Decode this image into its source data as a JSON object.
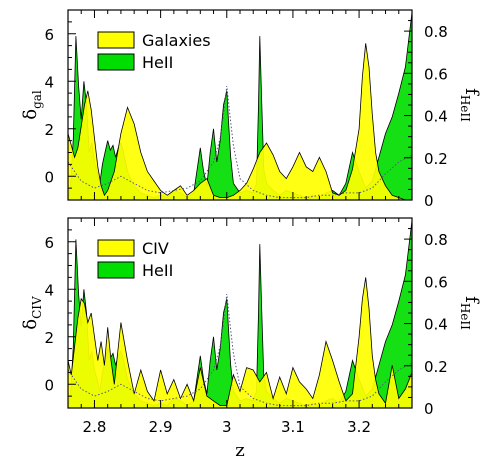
{
  "chart_data": [
    {
      "type": "area",
      "panel": "top",
      "xlabel": "z",
      "ylabel": {
        "symbol": "δ",
        "subscript": "gal"
      },
      "y2label": {
        "symbol": "f",
        "subscript": "HeII"
      },
      "xlim": [
        2.76,
        3.28
      ],
      "ylim": [
        -1.0,
        7.0
      ],
      "y2lim": [
        0.0,
        0.9
      ],
      "xticks": [
        2.8,
        2.9,
        3.0,
        3.1,
        3.2
      ],
      "xticklabels": [
        "2.8",
        "2.9",
        "3",
        "3.1",
        "3.2"
      ],
      "yticks": [
        0,
        2,
        4,
        6
      ],
      "yticklabels": [
        "0",
        "2",
        "4",
        "6"
      ],
      "y2ticks": [
        0.0,
        0.2,
        0.4,
        0.6,
        0.8
      ],
      "y2ticklabels": [
        "0",
        "0.2",
        "0.4",
        "0.6",
        "0.8"
      ],
      "legend": {
        "position": "top-left",
        "entries": [
          "Galaxies",
          "HeII"
        ]
      },
      "series": [
        {
          "name": "HeII",
          "color": "#00dd00",
          "x": [
            2.76,
            2.764,
            2.768,
            2.772,
            2.776,
            2.78,
            2.784,
            2.788,
            2.792,
            2.796,
            2.8,
            2.804,
            2.808,
            2.812,
            2.816,
            2.82,
            2.824,
            2.828,
            2.832,
            2.836,
            2.84,
            2.844,
            2.85,
            2.86,
            2.87,
            2.88,
            2.89,
            2.9,
            2.91,
            2.92,
            2.93,
            2.94,
            2.95,
            2.96,
            2.965,
            2.97,
            2.975,
            2.98,
            2.985,
            2.99,
            2.995,
            3.0,
            3.003,
            3.006,
            3.01,
            3.02,
            3.03,
            3.04,
            3.045,
            3.048,
            3.05,
            3.053,
            3.056,
            3.06,
            3.07,
            3.08,
            3.09,
            3.1,
            3.11,
            3.12,
            3.13,
            3.14,
            3.15,
            3.16,
            3.17,
            3.18,
            3.19,
            3.2,
            3.21,
            3.22,
            3.23,
            3.24,
            3.25,
            3.26,
            3.27,
            3.28
          ],
          "y": [
            -1.0,
            -0.4,
            1.6,
            5.9,
            3.8,
            2.4,
            4.0,
            3.0,
            1.0,
            1.4,
            0.6,
            0.2,
            -0.3,
            0.5,
            1.0,
            1.5,
            1.1,
            1.3,
            0.8,
            1.2,
            1.4,
            1.0,
            0.2,
            -0.4,
            -0.7,
            -0.8,
            -0.9,
            -0.8,
            -0.9,
            -0.6,
            -0.7,
            -0.9,
            -0.7,
            1.2,
            0.2,
            -0.4,
            1.0,
            2.0,
            0.6,
            1.5,
            3.0,
            3.6,
            2.1,
            0.8,
            -0.3,
            -0.7,
            -0.6,
            -0.7,
            -0.3,
            3.0,
            5.9,
            3.0,
            0.3,
            -0.3,
            -0.6,
            -0.8,
            -0.6,
            -0.7,
            -0.8,
            -0.9,
            -0.8,
            -0.9,
            -0.7,
            -0.6,
            -0.8,
            -0.3,
            1.0,
            0.2,
            -0.5,
            -0.2,
            0.8,
            1.8,
            2.5,
            3.5,
            4.6,
            6.9
          ]
        },
        {
          "name": "Galaxies",
          "color": "#ffff00",
          "x": [
            2.76,
            2.765,
            2.77,
            2.775,
            2.78,
            2.785,
            2.79,
            2.795,
            2.8,
            2.805,
            2.81,
            2.815,
            2.82,
            2.83,
            2.84,
            2.85,
            2.86,
            2.87,
            2.88,
            2.89,
            2.9,
            2.91,
            2.92,
            2.93,
            2.94,
            2.95,
            2.96,
            2.97,
            2.98,
            2.99,
            3.0,
            3.01,
            3.02,
            3.03,
            3.04,
            3.05,
            3.06,
            3.07,
            3.08,
            3.09,
            3.1,
            3.11,
            3.12,
            3.13,
            3.14,
            3.15,
            3.16,
            3.17,
            3.18,
            3.19,
            3.2,
            3.205,
            3.21,
            3.215,
            3.22,
            3.225,
            3.23,
            3.24,
            3.25,
            3.26,
            3.27,
            3.28
          ],
          "y": [
            1.8,
            1.3,
            0.8,
            1.2,
            2.1,
            3.0,
            3.6,
            2.8,
            1.6,
            0.4,
            -0.4,
            -0.8,
            -0.6,
            0.2,
            1.8,
            2.9,
            2.2,
            1.0,
            0.2,
            -0.2,
            -0.6,
            -0.8,
            -0.6,
            -0.4,
            -0.8,
            -0.6,
            -0.3,
            -0.1,
            -0.8,
            -0.9,
            -0.9,
            -0.8,
            -0.6,
            -0.3,
            0.3,
            1.0,
            1.4,
            0.9,
            0.2,
            -0.1,
            0.4,
            1.0,
            0.4,
            0.2,
            0.8,
            0.2,
            -0.7,
            -0.8,
            -0.6,
            0.3,
            2.0,
            4.2,
            5.6,
            4.6,
            2.6,
            1.0,
            0.2,
            -0.4,
            -0.8,
            -0.9,
            -1.0,
            -1.0
          ]
        },
        {
          "name": "",
          "style": "dotted",
          "color": "#000000",
          "x": [
            2.76,
            2.78,
            2.8,
            2.82,
            2.84,
            2.86,
            2.88,
            2.9,
            2.92,
            2.94,
            2.96,
            2.97,
            2.98,
            2.99,
            2.995,
            3.0,
            3.005,
            3.01,
            3.02,
            3.04,
            3.06,
            3.08,
            3.1,
            3.12,
            3.14,
            3.16,
            3.18,
            3.2,
            3.22,
            3.24,
            3.26,
            3.28
          ],
          "y": [
            0.6,
            -0.2,
            -0.5,
            -0.3,
            0.0,
            -0.3,
            -0.6,
            -0.7,
            -0.6,
            -0.5,
            -0.2,
            0.2,
            0.6,
            1.6,
            2.6,
            3.8,
            2.5,
            1.3,
            -0.1,
            -0.6,
            -0.8,
            -0.9,
            -0.9,
            -0.9,
            -0.8,
            -0.8,
            -0.7,
            -0.7,
            -0.5,
            0.1,
            0.6,
            0.9
          ]
        }
      ]
    },
    {
      "type": "area",
      "panel": "bottom",
      "xlabel": "z",
      "ylabel": {
        "symbol": "δ",
        "subscript": "CIV"
      },
      "y2label": {
        "symbol": "f",
        "subscript": "HeII"
      },
      "xlim": [
        2.76,
        3.28
      ],
      "ylim": [
        -1.0,
        7.0
      ],
      "y2lim": [
        0.0,
        0.9
      ],
      "xticks": [
        2.8,
        2.9,
        3.0,
        3.1,
        3.2
      ],
      "xticklabels": [
        "2.8",
        "2.9",
        "3",
        "3.1",
        "3.2"
      ],
      "yticks": [
        0,
        2,
        4,
        6
      ],
      "yticklabels": [
        "0",
        "2",
        "4",
        "6"
      ],
      "y2ticks": [
        0.0,
        0.2,
        0.4,
        0.6,
        0.8
      ],
      "y2ticklabels": [
        "0",
        "0.2",
        "0.4",
        "0.6",
        "0.8"
      ],
      "legend": {
        "position": "top-left",
        "entries": [
          "CIV",
          "HeII"
        ]
      },
      "series": [
        {
          "name": "HeII",
          "color": "#00dd00",
          "x": [
            2.76,
            2.764,
            2.768,
            2.772,
            2.776,
            2.78,
            2.784,
            2.788,
            2.792,
            2.796,
            2.8,
            2.804,
            2.808,
            2.812,
            2.816,
            2.82,
            2.824,
            2.828,
            2.832,
            2.836,
            2.84,
            2.844,
            2.85,
            2.86,
            2.87,
            2.88,
            2.89,
            2.9,
            2.91,
            2.92,
            2.93,
            2.94,
            2.95,
            2.96,
            2.965,
            2.97,
            2.975,
            2.98,
            2.985,
            2.99,
            2.995,
            3.0,
            3.003,
            3.006,
            3.01,
            3.02,
            3.03,
            3.04,
            3.045,
            3.048,
            3.05,
            3.053,
            3.056,
            3.06,
            3.07,
            3.08,
            3.09,
            3.1,
            3.11,
            3.12,
            3.13,
            3.14,
            3.15,
            3.16,
            3.17,
            3.18,
            3.19,
            3.2,
            3.21,
            3.22,
            3.23,
            3.24,
            3.25,
            3.26,
            3.27,
            3.28
          ],
          "y": [
            -1.0,
            -0.4,
            1.6,
            6.1,
            3.8,
            2.4,
            4.0,
            3.0,
            1.0,
            1.4,
            0.6,
            0.2,
            -0.3,
            0.5,
            1.0,
            1.5,
            1.1,
            1.3,
            0.8,
            1.2,
            1.4,
            1.0,
            0.2,
            -0.4,
            -0.7,
            -0.8,
            -0.9,
            -0.8,
            -0.9,
            -0.6,
            -0.7,
            -0.9,
            -0.7,
            1.2,
            0.2,
            -0.4,
            1.0,
            2.0,
            0.6,
            1.5,
            3.0,
            3.6,
            2.1,
            0.8,
            -0.3,
            -0.7,
            -0.6,
            -0.7,
            -0.3,
            3.0,
            5.9,
            3.0,
            0.3,
            -0.3,
            -0.6,
            -0.8,
            -0.6,
            -0.7,
            -0.8,
            -0.9,
            -0.8,
            -0.9,
            -0.7,
            -0.6,
            -0.8,
            -0.3,
            1.0,
            0.2,
            -0.5,
            -0.2,
            0.8,
            1.8,
            2.5,
            3.5,
            4.6,
            6.9
          ]
        },
        {
          "name": "CIV",
          "color": "#ffff00",
          "x": [
            2.76,
            2.765,
            2.77,
            2.775,
            2.78,
            2.785,
            2.79,
            2.795,
            2.8,
            2.805,
            2.81,
            2.815,
            2.82,
            2.825,
            2.83,
            2.84,
            2.85,
            2.86,
            2.87,
            2.88,
            2.89,
            2.9,
            2.91,
            2.92,
            2.93,
            2.94,
            2.95,
            2.96,
            2.97,
            2.98,
            2.99,
            3.0,
            3.01,
            3.02,
            3.03,
            3.04,
            3.05,
            3.06,
            3.07,
            3.08,
            3.09,
            3.1,
            3.11,
            3.12,
            3.13,
            3.14,
            3.15,
            3.16,
            3.17,
            3.18,
            3.19,
            3.2,
            3.205,
            3.21,
            3.215,
            3.22,
            3.225,
            3.23,
            3.24,
            3.25,
            3.26,
            3.27,
            3.28
          ],
          "y": [
            1.0,
            0.4,
            1.6,
            2.8,
            3.6,
            3.4,
            2.6,
            3.0,
            2.0,
            1.0,
            1.8,
            0.8,
            2.4,
            1.0,
            0.0,
            2.6,
            1.0,
            -0.4,
            0.6,
            -0.3,
            -0.7,
            0.6,
            -0.4,
            0.2,
            -0.6,
            0.0,
            -0.7,
            0.7,
            -0.5,
            -0.7,
            -0.9,
            -0.9,
            0.4,
            -0.3,
            0.7,
            0.6,
            0.1,
            0.5,
            -0.6,
            0.3,
            -0.4,
            0.7,
            0.1,
            -0.2,
            -0.6,
            0.4,
            1.8,
            1.0,
            0.1,
            -0.7,
            -0.4,
            2.0,
            3.6,
            4.5,
            3.2,
            1.2,
            0.2,
            -0.4,
            -0.8,
            0.8,
            -0.6,
            -0.2,
            0.5
          ]
        },
        {
          "name": "",
          "style": "dotted",
          "color": "#000000",
          "x": [
            2.76,
            2.78,
            2.8,
            2.82,
            2.84,
            2.86,
            2.88,
            2.9,
            2.92,
            2.94,
            2.96,
            2.97,
            2.98,
            2.99,
            2.995,
            3.0,
            3.005,
            3.01,
            3.02,
            3.04,
            3.06,
            3.08,
            3.1,
            3.12,
            3.14,
            3.16,
            3.18,
            3.2,
            3.22,
            3.24,
            3.26,
            3.28
          ],
          "y": [
            0.6,
            -0.2,
            -0.5,
            -0.3,
            0.0,
            -0.3,
            -0.6,
            -0.7,
            -0.6,
            -0.5,
            -0.2,
            0.2,
            0.6,
            1.6,
            2.6,
            3.8,
            2.5,
            1.3,
            -0.1,
            -0.6,
            -0.8,
            -0.9,
            -0.9,
            -0.9,
            -0.8,
            -0.8,
            -0.7,
            -0.7,
            -0.5,
            0.1,
            0.6,
            0.9
          ]
        }
      ]
    }
  ]
}
